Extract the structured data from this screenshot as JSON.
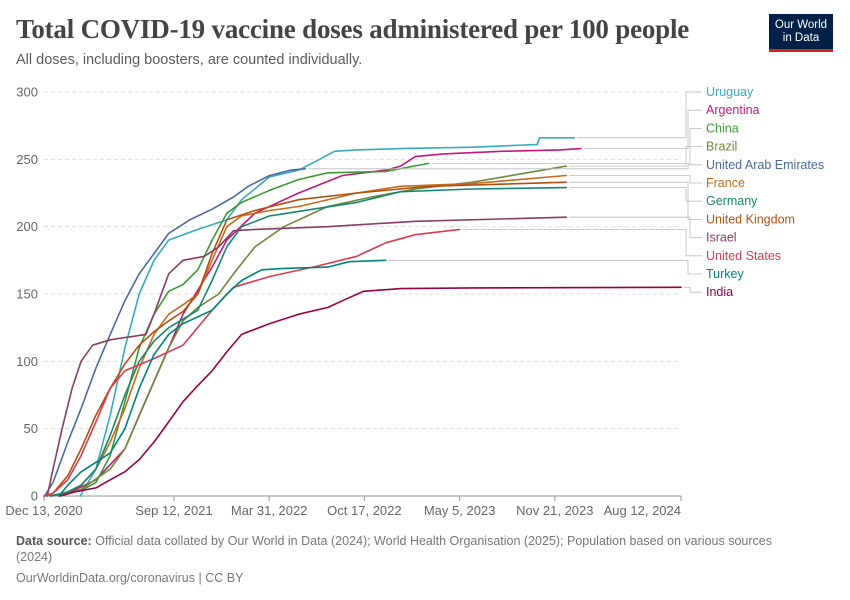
{
  "header": {
    "title": "Total COVID-19 vaccine doses administered per 100 people",
    "subtitle": "All doses, including boosters, are counted individually.",
    "logo_line1": "Our World",
    "logo_line2": "in Data"
  },
  "footer": {
    "source_label": "Data source:",
    "source_text": "Official data collated by Our World in Data (2024); World Health Organisation (2025); Population based on various sources (2024)",
    "url": "OurWorldinData.org/coronavirus",
    "separator": "|",
    "license": "CC BY"
  },
  "chart_data": {
    "type": "line",
    "title": "Total COVID-19 vaccine doses administered per 100 people",
    "xlabel": "",
    "ylabel": "",
    "ylim": [
      0,
      300
    ],
    "yticks": [
      0,
      50,
      100,
      150,
      200,
      250,
      300
    ],
    "xlim": [
      "2020-12-13",
      "2024-08-12"
    ],
    "xticks": [
      {
        "date": "2020-12-13",
        "label": "Dec 13, 2020"
      },
      {
        "date": "2021-09-12",
        "label": "Sep 12, 2021"
      },
      {
        "date": "2022-03-31",
        "label": "Mar 31, 2022"
      },
      {
        "date": "2022-10-17",
        "label": "Oct 17, 2022"
      },
      {
        "date": "2023-05-05",
        "label": "May 5, 2023"
      },
      {
        "date": "2023-11-21",
        "label": "Nov 21, 2023"
      },
      {
        "date": "2024-08-12",
        "label": "Aug 12, 2024"
      }
    ],
    "grid": true,
    "legend_position": "right",
    "series": [
      {
        "name": "Uruguay",
        "color": "#38aaba",
        "points": [
          [
            "2021-02-27",
            0
          ],
          [
            "2021-04-01",
            20
          ],
          [
            "2021-05-01",
            60
          ],
          [
            "2021-06-01",
            110
          ],
          [
            "2021-07-01",
            150
          ],
          [
            "2021-08-01",
            175
          ],
          [
            "2021-09-01",
            190
          ],
          [
            "2021-11-01",
            198
          ],
          [
            "2022-01-01",
            205
          ],
          [
            "2022-02-01",
            220
          ],
          [
            "2022-04-01",
            237
          ],
          [
            "2022-06-01",
            242
          ],
          [
            "2022-07-15",
            250
          ],
          [
            "2022-08-15",
            256
          ],
          [
            "2022-10-01",
            257
          ],
          [
            "2023-01-01",
            258
          ],
          [
            "2023-06-01",
            259
          ],
          [
            "2023-10-15",
            261
          ],
          [
            "2023-10-20",
            266
          ],
          [
            "2024-01-01",
            266
          ]
        ]
      },
      {
        "name": "Argentina",
        "color": "#c2187b",
        "points": [
          [
            "2020-12-29",
            0
          ],
          [
            "2021-02-01",
            2
          ],
          [
            "2021-04-01",
            12
          ],
          [
            "2021-06-01",
            35
          ],
          [
            "2021-08-01",
            85
          ],
          [
            "2021-09-01",
            110
          ],
          [
            "2021-10-01",
            135
          ],
          [
            "2021-12-01",
            170
          ],
          [
            "2022-01-01",
            190
          ],
          [
            "2022-03-01",
            210
          ],
          [
            "2022-06-01",
            225
          ],
          [
            "2022-09-01",
            238
          ],
          [
            "2022-12-01",
            242
          ],
          [
            "2023-01-01",
            245
          ],
          [
            "2023-02-01",
            252
          ],
          [
            "2023-04-01",
            254
          ],
          [
            "2023-08-01",
            256
          ],
          [
            "2023-12-01",
            257
          ],
          [
            "2024-01-15",
            258
          ]
        ]
      },
      {
        "name": "China",
        "color": "#3a9b35",
        "points": [
          [
            "2020-12-15",
            0
          ],
          [
            "2021-01-15",
            1
          ],
          [
            "2021-03-01",
            4
          ],
          [
            "2021-04-01",
            10
          ],
          [
            "2021-05-01",
            30
          ],
          [
            "2021-06-01",
            70
          ],
          [
            "2021-07-01",
            110
          ],
          [
            "2021-08-01",
            135
          ],
          [
            "2021-09-01",
            152
          ],
          [
            "2021-10-01",
            157
          ],
          [
            "2021-11-01",
            168
          ],
          [
            "2021-12-01",
            190
          ],
          [
            "2022-01-01",
            210
          ],
          [
            "2022-02-01",
            218
          ],
          [
            "2022-04-01",
            227
          ],
          [
            "2022-06-01",
            235
          ],
          [
            "2022-08-01",
            240
          ],
          [
            "2022-12-01",
            241
          ],
          [
            "2023-01-15",
            244
          ],
          [
            "2023-03-01",
            247
          ]
        ]
      },
      {
        "name": "Brazil",
        "color": "#6d8a3c",
        "points": [
          [
            "2021-01-17",
            0
          ],
          [
            "2021-03-01",
            5
          ],
          [
            "2021-05-01",
            20
          ],
          [
            "2021-06-01",
            35
          ],
          [
            "2021-07-01",
            60
          ],
          [
            "2021-08-01",
            85
          ],
          [
            "2021-09-01",
            110
          ],
          [
            "2021-10-01",
            130
          ],
          [
            "2021-11-01",
            140
          ],
          [
            "2021-12-15",
            150
          ],
          [
            "2022-01-15",
            165
          ],
          [
            "2022-03-01",
            185
          ],
          [
            "2022-05-01",
            200
          ],
          [
            "2022-08-01",
            215
          ],
          [
            "2022-11-01",
            222
          ],
          [
            "2023-02-01",
            228
          ],
          [
            "2023-06-01",
            233
          ],
          [
            "2023-12-15",
            245
          ]
        ]
      },
      {
        "name": "United Arab Emirates",
        "color": "#4c6a9c",
        "points": [
          [
            "2020-12-14",
            0
          ],
          [
            "2021-01-01",
            10
          ],
          [
            "2021-02-01",
            40
          ],
          [
            "2021-03-01",
            65
          ],
          [
            "2021-04-01",
            95
          ],
          [
            "2021-05-01",
            120
          ],
          [
            "2021-06-01",
            145
          ],
          [
            "2021-07-01",
            165
          ],
          [
            "2021-08-01",
            180
          ],
          [
            "2021-09-01",
            195
          ],
          [
            "2021-10-15",
            205
          ],
          [
            "2021-12-01",
            213
          ],
          [
            "2022-01-15",
            222
          ],
          [
            "2022-02-15",
            230
          ],
          [
            "2022-04-01",
            238
          ],
          [
            "2022-05-15",
            242
          ],
          [
            "2022-06-15",
            243
          ]
        ]
      },
      {
        "name": "France",
        "color": "#c86a1b",
        "points": [
          [
            "2020-12-27",
            0
          ],
          [
            "2021-02-01",
            3
          ],
          [
            "2021-03-01",
            8
          ],
          [
            "2021-04-01",
            20
          ],
          [
            "2021-05-01",
            40
          ],
          [
            "2021-06-01",
            65
          ],
          [
            "2021-07-01",
            95
          ],
          [
            "2021-08-01",
            120
          ],
          [
            "2021-09-01",
            135
          ],
          [
            "2021-10-01",
            142
          ],
          [
            "2021-11-01",
            150
          ],
          [
            "2021-12-01",
            175
          ],
          [
            "2022-01-01",
            200
          ],
          [
            "2022-02-01",
            208
          ],
          [
            "2022-04-01",
            212
          ],
          [
            "2022-06-01",
            215
          ],
          [
            "2022-10-01",
            225
          ],
          [
            "2023-01-01",
            230
          ],
          [
            "2023-06-01",
            232
          ],
          [
            "2023-12-15",
            238
          ]
        ]
      },
      {
        "name": "Germany",
        "color": "#18866e",
        "points": [
          [
            "2020-12-27",
            0
          ],
          [
            "2021-02-01",
            3
          ],
          [
            "2021-03-01",
            8
          ],
          [
            "2021-04-01",
            20
          ],
          [
            "2021-05-01",
            45
          ],
          [
            "2021-06-01",
            75
          ],
          [
            "2021-07-01",
            100
          ],
          [
            "2021-08-01",
            115
          ],
          [
            "2021-09-01",
            125
          ],
          [
            "2021-11-01",
            138
          ],
          [
            "2021-12-01",
            160
          ],
          [
            "2022-01-01",
            185
          ],
          [
            "2022-02-01",
            200
          ],
          [
            "2022-04-01",
            208
          ],
          [
            "2022-07-01",
            213
          ],
          [
            "2022-10-01",
            218
          ],
          [
            "2023-01-01",
            226
          ],
          [
            "2023-06-01",
            228
          ],
          [
            "2023-12-15",
            229
          ]
        ]
      },
      {
        "name": "United Kingdom",
        "color": "#b34f12",
        "points": [
          [
            "2020-12-13",
            0
          ],
          [
            "2021-01-01",
            2
          ],
          [
            "2021-02-01",
            15
          ],
          [
            "2021-03-01",
            35
          ],
          [
            "2021-04-01",
            60
          ],
          [
            "2021-05-01",
            80
          ],
          [
            "2021-06-01",
            98
          ],
          [
            "2021-07-01",
            112
          ],
          [
            "2021-08-01",
            122
          ],
          [
            "2021-09-01",
            130
          ],
          [
            "2021-10-01",
            137
          ],
          [
            "2021-11-01",
            150
          ],
          [
            "2021-12-01",
            180
          ],
          [
            "2022-01-01",
            205
          ],
          [
            "2022-03-01",
            212
          ],
          [
            "2022-06-01",
            220
          ],
          [
            "2022-10-01",
            225
          ],
          [
            "2023-03-01",
            230
          ],
          [
            "2023-12-15",
            233
          ]
        ]
      },
      {
        "name": "Israel",
        "color": "#883e66",
        "points": [
          [
            "2020-12-20",
            0
          ],
          [
            "2021-01-01",
            20
          ],
          [
            "2021-01-20",
            50
          ],
          [
            "2021-02-10",
            80
          ],
          [
            "2021-03-01",
            100
          ],
          [
            "2021-03-25",
            112
          ],
          [
            "2021-05-01",
            116
          ],
          [
            "2021-07-15",
            120
          ],
          [
            "2021-08-01",
            135
          ],
          [
            "2021-09-01",
            165
          ],
          [
            "2021-10-01",
            175
          ],
          [
            "2021-11-15",
            178
          ],
          [
            "2021-12-15",
            185
          ],
          [
            "2022-01-15",
            197
          ],
          [
            "2022-03-01",
            198
          ],
          [
            "2022-08-01",
            200
          ],
          [
            "2023-02-01",
            204
          ],
          [
            "2023-12-15",
            207
          ]
        ]
      },
      {
        "name": "United States",
        "color": "#d73c50",
        "points": [
          [
            "2020-12-13",
            0
          ],
          [
            "2021-01-01",
            2
          ],
          [
            "2021-02-01",
            12
          ],
          [
            "2021-03-01",
            30
          ],
          [
            "2021-04-01",
            55
          ],
          [
            "2021-05-01",
            80
          ],
          [
            "2021-06-01",
            93
          ],
          [
            "2021-08-01",
            102
          ],
          [
            "2021-10-01",
            112
          ],
          [
            "2021-12-01",
            138
          ],
          [
            "2022-01-15",
            155
          ],
          [
            "2022-04-01",
            163
          ],
          [
            "2022-07-01",
            170
          ],
          [
            "2022-10-01",
            178
          ],
          [
            "2022-12-01",
            188
          ],
          [
            "2023-02-01",
            194
          ],
          [
            "2023-05-05",
            198
          ]
        ]
      },
      {
        "name": "Turkey",
        "color": "#00847e",
        "points": [
          [
            "2021-01-13",
            0
          ],
          [
            "2021-02-01",
            8
          ],
          [
            "2021-03-01",
            18
          ],
          [
            "2021-04-01",
            25
          ],
          [
            "2021-05-01",
            32
          ],
          [
            "2021-06-01",
            50
          ],
          [
            "2021-07-01",
            80
          ],
          [
            "2021-08-01",
            105
          ],
          [
            "2021-09-01",
            120
          ],
          [
            "2021-10-01",
            128
          ],
          [
            "2021-11-01",
            133
          ],
          [
            "2021-12-01",
            138
          ],
          [
            "2022-01-01",
            150
          ],
          [
            "2022-02-01",
            160
          ],
          [
            "2022-03-15",
            168
          ],
          [
            "2022-05-01",
            169
          ],
          [
            "2022-08-01",
            170
          ],
          [
            "2022-09-15",
            174
          ],
          [
            "2022-12-01",
            175
          ]
        ]
      },
      {
        "name": "India",
        "color": "#970046",
        "points": [
          [
            "2021-01-16",
            0
          ],
          [
            "2021-02-15",
            3
          ],
          [
            "2021-04-01",
            6
          ],
          [
            "2021-05-01",
            12
          ],
          [
            "2021-06-01",
            18
          ],
          [
            "2021-07-01",
            27
          ],
          [
            "2021-08-01",
            40
          ],
          [
            "2021-09-01",
            55
          ],
          [
            "2021-10-01",
            70
          ],
          [
            "2021-11-01",
            82
          ],
          [
            "2021-12-01",
            93
          ],
          [
            "2022-01-01",
            107
          ],
          [
            "2022-02-01",
            120
          ],
          [
            "2022-04-01",
            128
          ],
          [
            "2022-06-01",
            135
          ],
          [
            "2022-08-01",
            140
          ],
          [
            "2022-09-01",
            145
          ],
          [
            "2022-10-15",
            152
          ],
          [
            "2023-01-01",
            154
          ],
          [
            "2023-06-01",
            154.5
          ],
          [
            "2024-08-12",
            155
          ]
        ]
      }
    ]
  }
}
